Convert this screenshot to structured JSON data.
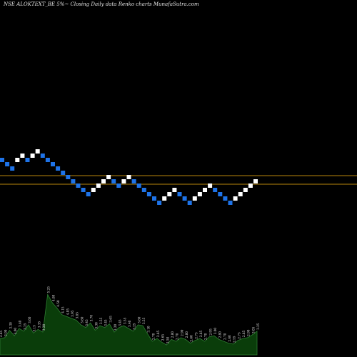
{
  "chart_data": {
    "type": "renko",
    "title": "NSE ALOKTEXT_BE 5%~   Closing Daily data  Renko  charts MunafaSutra.com",
    "colors": {
      "background": "#000000",
      "up_brick": "#ffffff",
      "down_brick": "#1e73e8",
      "reference_line": "#b8860b",
      "volume_fill": "#0a3d0a",
      "volume_line": "#2e7d32"
    },
    "reference_lines": [
      246.0,
      258.0
    ],
    "bricks": [
      {
        "level": 224,
        "dir": "down"
      },
      {
        "level": 230,
        "dir": "down"
      },
      {
        "level": 236,
        "dir": "down"
      },
      {
        "level": 224,
        "dir": "up"
      },
      {
        "level": 218,
        "dir": "up"
      },
      {
        "level": 224,
        "dir": "down"
      },
      {
        "level": 218,
        "dir": "up"
      },
      {
        "level": 212,
        "dir": "up"
      },
      {
        "level": 218,
        "dir": "down"
      },
      {
        "level": 224,
        "dir": "down"
      },
      {
        "level": 230,
        "dir": "down"
      },
      {
        "level": 236,
        "dir": "down"
      },
      {
        "level": 242,
        "dir": "down"
      },
      {
        "level": 248,
        "dir": "down"
      },
      {
        "level": 254,
        "dir": "down"
      },
      {
        "level": 260,
        "dir": "down"
      },
      {
        "level": 266,
        "dir": "down"
      },
      {
        "level": 272,
        "dir": "down"
      },
      {
        "level": 266,
        "dir": "up"
      },
      {
        "level": 260,
        "dir": "up"
      },
      {
        "level": 254,
        "dir": "up"
      },
      {
        "level": 248,
        "dir": "up"
      },
      {
        "level": 254,
        "dir": "down"
      },
      {
        "level": 260,
        "dir": "down"
      },
      {
        "level": 254,
        "dir": "up"
      },
      {
        "level": 248,
        "dir": "up"
      },
      {
        "level": 254,
        "dir": "down"
      },
      {
        "level": 260,
        "dir": "down"
      },
      {
        "level": 266,
        "dir": "down"
      },
      {
        "level": 272,
        "dir": "down"
      },
      {
        "level": 278,
        "dir": "down"
      },
      {
        "level": 284,
        "dir": "down"
      },
      {
        "level": 278,
        "dir": "up"
      },
      {
        "level": 272,
        "dir": "up"
      },
      {
        "level": 266,
        "dir": "up"
      },
      {
        "level": 272,
        "dir": "down"
      },
      {
        "level": 278,
        "dir": "down"
      },
      {
        "level": 284,
        "dir": "down"
      },
      {
        "level": 278,
        "dir": "up"
      },
      {
        "level": 272,
        "dir": "up"
      },
      {
        "level": 266,
        "dir": "up"
      },
      {
        "level": 260,
        "dir": "up"
      },
      {
        "level": 266,
        "dir": "down"
      },
      {
        "level": 272,
        "dir": "down"
      },
      {
        "level": 278,
        "dir": "down"
      },
      {
        "level": 284,
        "dir": "down"
      },
      {
        "level": 278,
        "dir": "up"
      },
      {
        "level": 272,
        "dir": "up"
      },
      {
        "level": 266,
        "dir": "up"
      },
      {
        "level": 260,
        "dir": "up"
      },
      {
        "level": 254,
        "dir": "up"
      }
    ],
    "volume_labels": [
      "2.85",
      "2.90",
      "3.30",
      "3.00",
      "3.40",
      "3.25",
      "3.60",
      "3.15",
      "3.35",
      "3.20",
      "5.25",
      "4.80",
      "4.50",
      "4.15",
      "4.05",
      "3.95",
      "3.85",
      "3.60",
      "3.45",
      "3.70",
      "3.30",
      "3.55",
      "3.45",
      "3.65",
      "3.20",
      "3.45",
      "3.55",
      "3.40",
      "3.25",
      "3.60",
      "3.55",
      "3.10",
      "2.70",
      "2.85",
      "2.65",
      "2.50",
      "2.80",
      "2.70",
      "2.90",
      "2.80",
      "2.60",
      "2.75",
      "2.85",
      "2.70",
      "2.95",
      "3.00",
      "2.80",
      "2.70",
      "2.60",
      "2.55",
      "2.75",
      "2.85",
      "2.90",
      "3.05",
      "3.25"
    ]
  }
}
